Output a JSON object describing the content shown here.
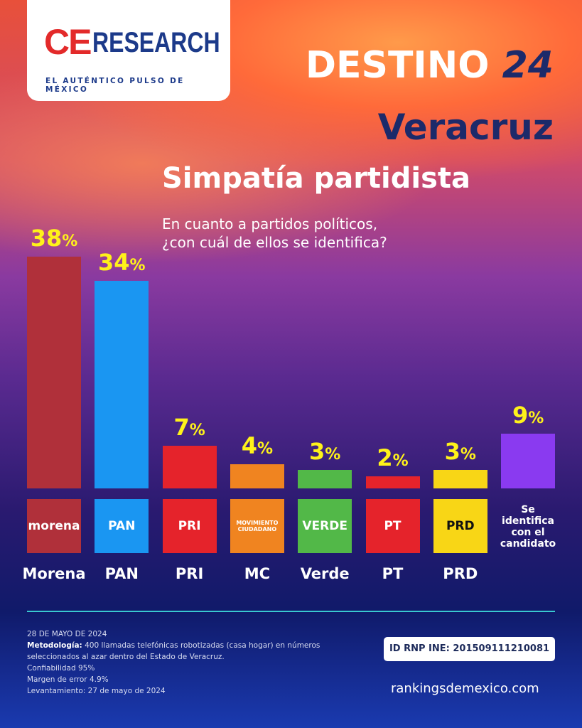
{
  "brand": {
    "ce": "CE",
    "research": "RESEARCH",
    "tagline": "EL AUTÉNTICO PULSO DE MÉXICO"
  },
  "header": {
    "destino": "DESTINO",
    "year": "24",
    "state": "Veracruz",
    "title": "Simpatía partidista",
    "question": "En cuanto a partidos políticos, ¿con cuál de ellos se identifica?"
  },
  "chart_data": {
    "type": "bar",
    "title": "Simpatía partidista",
    "categories": [
      "Morena",
      "PAN",
      "PRI",
      "MC",
      "Verde",
      "PT",
      "PRD",
      "Se identifica con el candidato"
    ],
    "values": [
      38,
      34,
      7,
      4,
      3,
      2,
      3,
      9
    ],
    "colors": [
      "#b0303a",
      "#1a96f2",
      "#e5232b",
      "#f08420",
      "#52b848",
      "#e5232b",
      "#f8d616",
      "#8a3af0"
    ],
    "logos": [
      "morena",
      "PAN",
      "PRI",
      "MOVIMIENTO CIUDADANO",
      "VERDE",
      "PT",
      "PRD",
      ""
    ],
    "unit": "%",
    "ylim": [
      0,
      38
    ]
  },
  "footer": {
    "date": "28 DE MAYO DE 2024",
    "method_label": "Metodología:",
    "method": "400 llamadas telefónicas robotizadas (casa hogar) en números seleccionados al azar dentro del Estado de Veracruz.",
    "confidence": "Confiabilidad 95%",
    "margin": "Margen de error 4.9%",
    "fieldwork": "Levantamiento: 27 de mayo de 2024",
    "rnp": "ID RNP INE:  201509111210081",
    "site": "rankingsdemexico.com"
  }
}
